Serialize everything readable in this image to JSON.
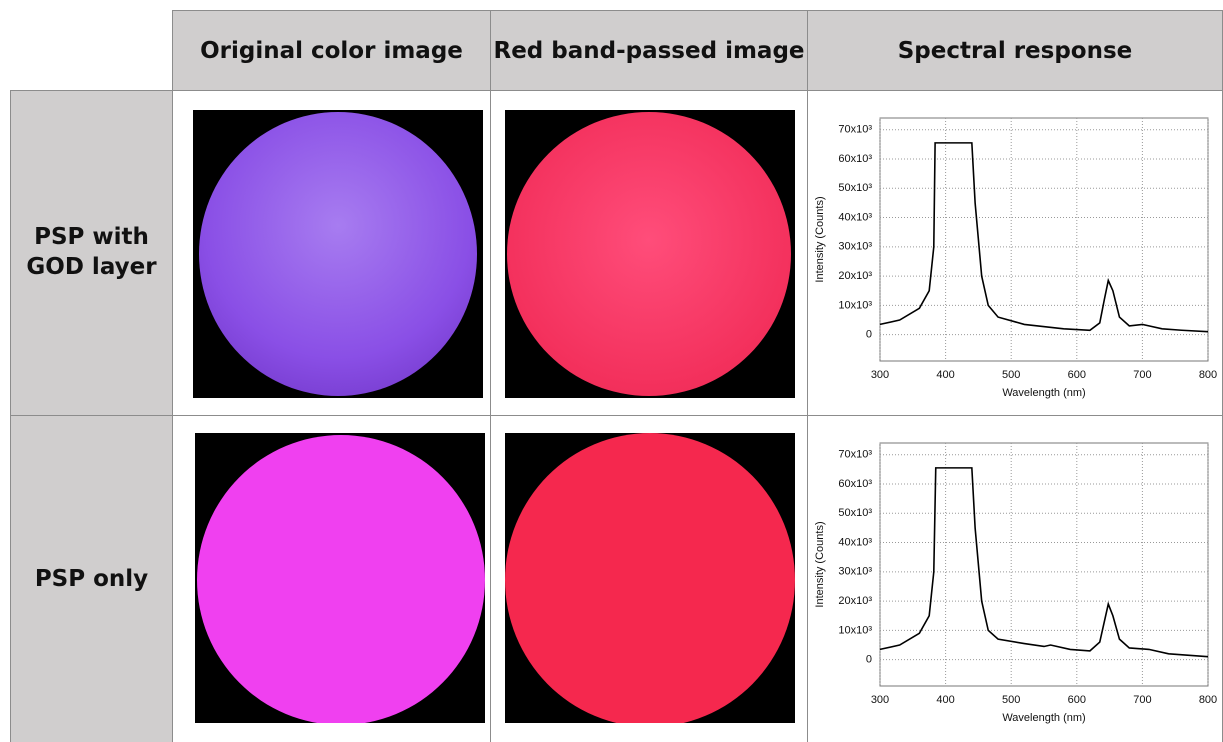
{
  "table": {
    "header": [
      "Original color image",
      "Red band-passed image",
      "Spectral response"
    ],
    "rows": [
      {
        "label": "PSP with GOD layer"
      },
      {
        "label": "PSP only"
      }
    ]
  },
  "chart_data": [
    {
      "type": "line",
      "xlabel": "Wavelength (nm)",
      "ylabel": "Intensity (Counts)",
      "x": [
        300,
        330,
        360,
        375,
        382,
        384,
        440,
        445,
        455,
        465,
        480,
        520,
        580,
        620,
        635,
        642,
        648,
        655,
        665,
        680,
        700,
        710,
        730,
        760,
        800
      ],
      "series": [
        {
          "color": "#000000",
          "values": [
            3500,
            5000,
            9000,
            15000,
            30000,
            65500,
            65500,
            45000,
            20000,
            10000,
            6000,
            3500,
            2000,
            1500,
            4000,
            12000,
            18500,
            15000,
            6000,
            3000,
            3500,
            3000,
            2000,
            1500,
            1000
          ]
        }
      ],
      "xlim": [
        300,
        800
      ],
      "ylim": [
        -9000,
        74000
      ],
      "xticks": [
        300,
        400,
        500,
        600,
        700,
        800
      ],
      "yticks": [
        0,
        {
          "value": 10000,
          "label": "10x10³"
        },
        {
          "value": 20000,
          "label": "20x10³"
        },
        {
          "value": 30000,
          "label": "30x10³"
        },
        {
          "value": 40000,
          "label": "40x10³"
        },
        {
          "value": 50000,
          "label": "50x10³"
        },
        {
          "value": 60000,
          "label": "60x10³"
        },
        {
          "value": 70000,
          "label": "70x10³"
        }
      ],
      "grid": true
    },
    {
      "type": "line",
      "xlabel": "Wavelength (nm)",
      "ylabel": "Intensity (Counts)",
      "x": [
        300,
        330,
        360,
        375,
        382,
        385,
        440,
        445,
        455,
        465,
        480,
        520,
        550,
        560,
        590,
        620,
        635,
        642,
        648,
        655,
        665,
        680,
        710,
        740,
        800
      ],
      "series": [
        {
          "color": "#000000",
          "values": [
            3500,
            5000,
            9000,
            15000,
            30000,
            65500,
            65500,
            45000,
            20000,
            10000,
            7000,
            5500,
            4500,
            5000,
            3500,
            3000,
            6000,
            13000,
            19000,
            15000,
            7000,
            4000,
            3500,
            2000,
            1000
          ]
        }
      ],
      "xlim": [
        300,
        800
      ],
      "ylim": [
        -9000,
        74000
      ],
      "xticks": [
        300,
        400,
        500,
        600,
        700,
        800
      ],
      "yticks": [
        0,
        {
          "value": 10000,
          "label": "10x10³"
        },
        {
          "value": 20000,
          "label": "20x10³"
        },
        {
          "value": 30000,
          "label": "30x10³"
        },
        {
          "value": 40000,
          "label": "40x10³"
        },
        {
          "value": 50000,
          "label": "50x10³"
        },
        {
          "value": 60000,
          "label": "60x10³"
        },
        {
          "value": 70000,
          "label": "70x10³"
        }
      ],
      "grid": true
    }
  ]
}
